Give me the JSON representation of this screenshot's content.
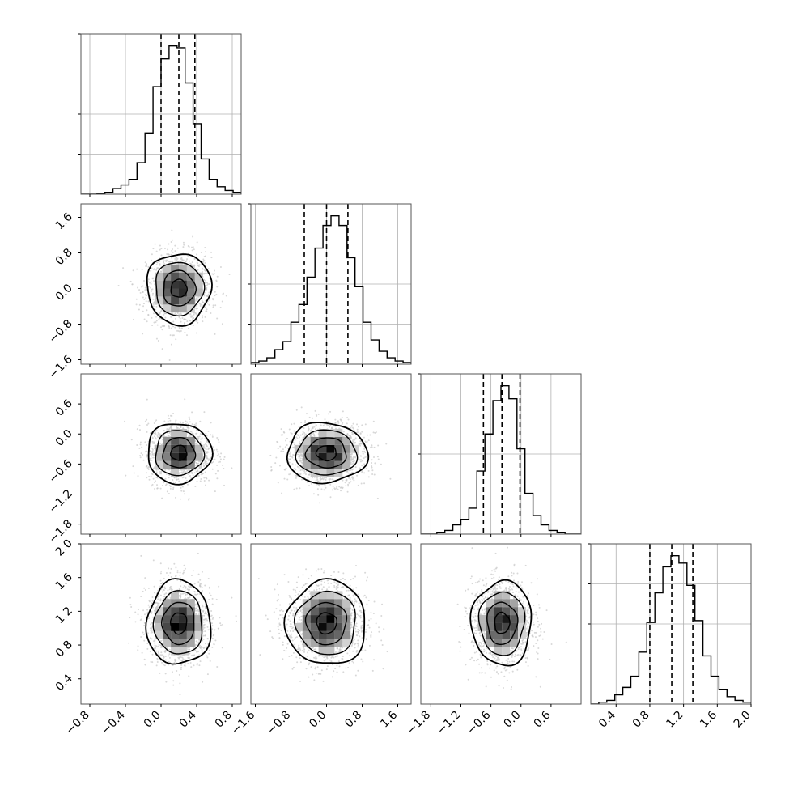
{
  "chart_data": {
    "type": "corner",
    "parameters": [
      {
        "xlim": [
          -0.9,
          0.9
        ],
        "x_ticks": [
          "-0.8",
          "-0.4",
          "0.0",
          "0.4",
          "0.8"
        ],
        "y_ticks": [],
        "quantiles": [
          0.0,
          0.2,
          0.38
        ],
        "histogram": {
          "bin_start": -0.9,
          "bin_width": 0.09,
          "counts": [
            0,
            0,
            0.2,
            0.5,
            1.5,
            2.5,
            4,
            8.5,
            16.5,
            29,
            36.5,
            40,
            39.5,
            30,
            19,
            9.5,
            4,
            2,
            1,
            0.5
          ]
        }
      },
      {
        "xlim": [
          -1.7,
          1.9
        ],
        "x_ticks": [
          "-1.6",
          "-0.8",
          "0.0",
          "0.8",
          "1.6"
        ],
        "y_ticks": [
          "1.6",
          "0.8",
          "0.0",
          "-0.8",
          "-1.6"
        ],
        "quantiles": [
          -0.5,
          0.0,
          0.48
        ],
        "histogram": {
          "bin_start": -1.7,
          "bin_width": 0.18,
          "counts": [
            0.5,
            1,
            2,
            4.5,
            7,
            13,
            18.5,
            27,
            36,
            43,
            46,
            43,
            33,
            24,
            13,
            7.5,
            4,
            2,
            1,
            0.5
          ]
        }
      },
      {
        "xlim": [
          -2.0,
          1.2
        ],
        "x_ticks": [
          "-1.8",
          "-1.2",
          "-0.6",
          "0.0",
          "0.6"
        ],
        "y_ticks": [
          "0.6",
          "0.0",
          "-0.6",
          "-1.2",
          "-1.8"
        ],
        "quantiles": [
          -0.75,
          -0.38,
          -0.02
        ],
        "histogram": {
          "bin_start": -2.0,
          "bin_width": 0.16,
          "counts": [
            0,
            0,
            0.5,
            1,
            2.5,
            4,
            7,
            17,
            27,
            36,
            40,
            36.5,
            23,
            11,
            5,
            2.5,
            1,
            0.5,
            0,
            0
          ]
        }
      },
      {
        "xlim": [
          0.1,
          2.0
        ],
        "x_ticks": [
          "0.4",
          "0.8",
          "1.2",
          "1.6",
          "2.0"
        ],
        "y_ticks": [
          "2.0",
          "1.6",
          "1.2",
          "0.8",
          "0.4"
        ],
        "quantiles": [
          0.8,
          1.06,
          1.31
        ],
        "histogram": {
          "bin_start": 0.1,
          "bin_width": 0.095,
          "counts": [
            0,
            0.5,
            1,
            2.5,
            4.5,
            7.5,
            14,
            22,
            30,
            37,
            40,
            38,
            32,
            22.5,
            13,
            7.5,
            4,
            2,
            1,
            0.5
          ]
        }
      }
    ],
    "pairs": [
      {
        "row": 1,
        "col": 0,
        "center": [
          0.2,
          0.0
        ],
        "sigma": [
          0.18,
          0.4
        ]
      },
      {
        "row": 2,
        "col": 0,
        "center": [
          0.2,
          -0.38
        ],
        "sigma": [
          0.18,
          0.3
        ]
      },
      {
        "row": 2,
        "col": 1,
        "center": [
          0.0,
          -0.38
        ],
        "sigma": [
          0.45,
          0.3
        ]
      },
      {
        "row": 3,
        "col": 0,
        "center": [
          0.2,
          1.06
        ],
        "sigma": [
          0.18,
          0.25
        ]
      },
      {
        "row": 3,
        "col": 1,
        "center": [
          0.0,
          1.06
        ],
        "sigma": [
          0.45,
          0.25
        ]
      },
      {
        "row": 3,
        "col": 2,
        "center": [
          -0.38,
          1.06
        ],
        "sigma": [
          0.3,
          0.25
        ]
      }
    ],
    "grid": true,
    "colors": {
      "line": "#000000",
      "grid": "#b0b0b0",
      "scatter": "#c8c8c8"
    }
  }
}
